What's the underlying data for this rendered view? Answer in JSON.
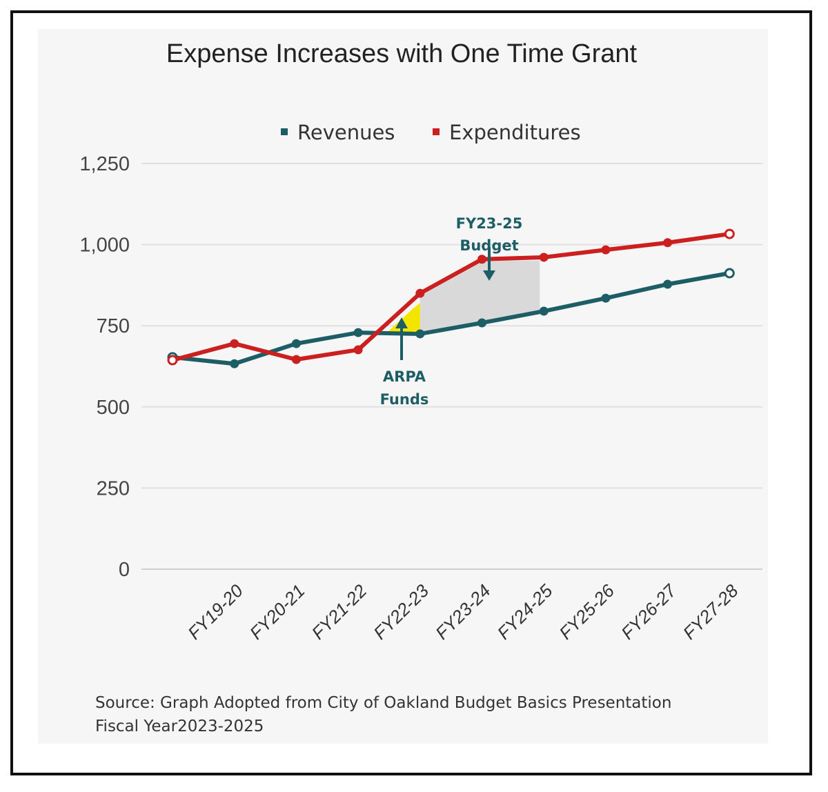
{
  "chart_data": {
    "type": "line",
    "title": "Expense Increases with One Time Grant",
    "categories": [
      "",
      "FY19-20",
      "FY20-21",
      "FY21-22",
      "FY22-23",
      "FY23-24",
      "FY24-25",
      "FY25-26",
      "FY26-27",
      "FY27-28"
    ],
    "series": [
      {
        "name": "Revenues",
        "color": "#1d5e66",
        "values": [
          653,
          633,
          695,
          729,
          725,
          759,
          795,
          835,
          878,
          912
        ]
      },
      {
        "name": "Expenditures",
        "color": "#cc1f1f",
        "values": [
          644,
          695,
          646,
          676,
          850,
          955,
          961,
          984,
          1006,
          1033
        ]
      }
    ],
    "yticks": [
      0,
      250,
      500,
      750,
      1000,
      1250
    ],
    "ytick_labels": [
      "0",
      "250",
      "500",
      "750",
      "1,000",
      "1,250"
    ],
    "ylim": [
      0,
      1250
    ],
    "grid": true,
    "legend_position": "top-center",
    "annotations": [
      {
        "text_lines": [
          "FY23-25",
          "Budget"
        ],
        "shaded_from_index": 4,
        "shaded_to_index": 6,
        "shade_color": "#d9d9d9"
      },
      {
        "text_lines": [
          "ARPA",
          "Funds"
        ],
        "shade_color": "#f2e600"
      }
    ],
    "source_lines": [
      "Source: Graph Adopted from City of Oakland Budget Basics Presentation",
      "Fiscal Year2023-2025"
    ]
  }
}
